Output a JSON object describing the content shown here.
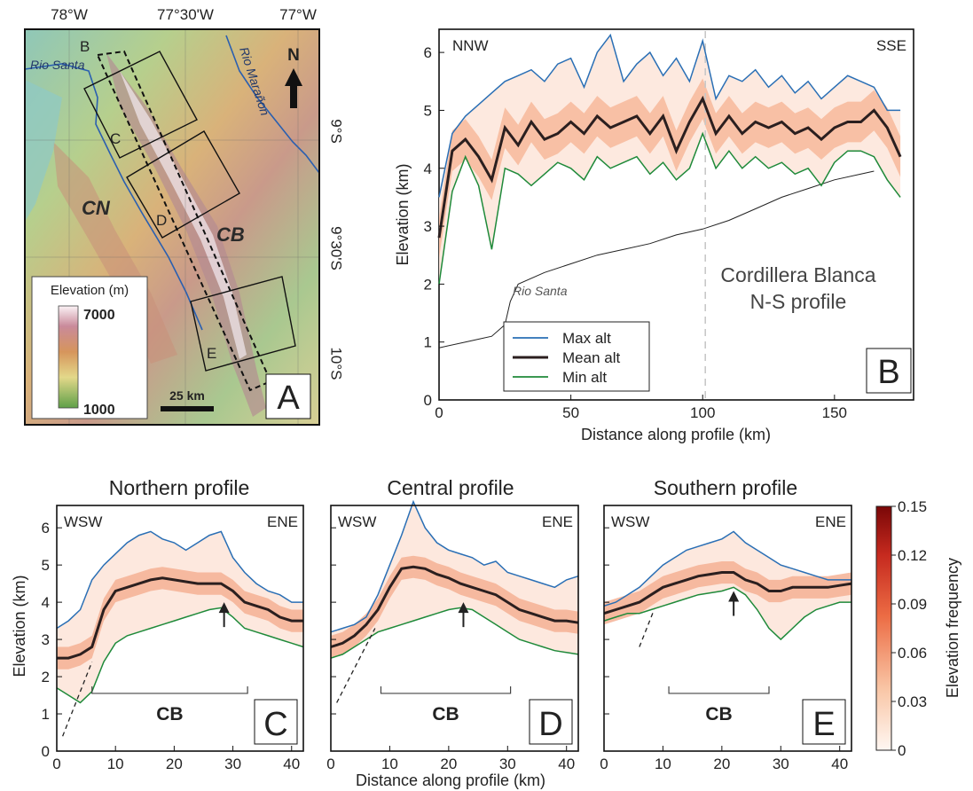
{
  "colors": {
    "max": "#2a6fb5",
    "mean": "#2b1f1f",
    "min": "#1f8a3a",
    "river": "#222222",
    "heat_low": "#fff4ee",
    "heat_high": "#8b0a0a"
  },
  "map": {
    "lon_ticks": [
      "78°W",
      "77°30'W",
      "77°W"
    ],
    "lat_ticks": [
      "9°S",
      "9°30'S",
      "10°S"
    ],
    "rivers": [
      "Rio Santa",
      "Rio Marañon"
    ],
    "region_labels": [
      "CN",
      "CB"
    ],
    "box_labels": [
      "B",
      "C",
      "D",
      "E"
    ],
    "north": "N",
    "legend_title": "Elevation (m)",
    "legend_max": "7000",
    "legend_min": "1000",
    "scale": "25 km",
    "panel": "A"
  },
  "panel_b": {
    "dir_left": "NNW",
    "dir_right": "SSE",
    "title_line1": "Cordillera Blanca",
    "title_line2": "N-S profile",
    "river_label": "Rio Santa",
    "legend": [
      "Max alt",
      "Mean alt",
      "Min alt"
    ],
    "panel": "B"
  },
  "bottom": {
    "titles": [
      "Northern profile",
      "Central profile",
      "Southern profile"
    ],
    "dir_left": "WSW",
    "dir_right": "ENE",
    "cb": "CB",
    "panels": [
      "C",
      "D",
      "E"
    ],
    "xlabel": "Distance along profile (km)",
    "ylabel": "Elevation (km)"
  },
  "colorbar": {
    "label": "Elevation frequency",
    "ticks": [
      "0.15",
      "0.12",
      "0.09",
      "0.06",
      "0.03",
      "0"
    ]
  },
  "chart_data": [
    {
      "type": "line",
      "title": "Cordillera Blanca N-S profile",
      "xlabel": "Distance along profile (km)",
      "ylabel": "Elevation (km)",
      "xlim": [
        0,
        180
      ],
      "ylim": [
        0,
        6.4
      ],
      "x_ticks": [
        0,
        50,
        100,
        150
      ],
      "y_ticks": [
        0,
        1,
        2,
        3,
        4,
        5,
        6
      ],
      "x": [
        0,
        5,
        10,
        15,
        20,
        25,
        30,
        35,
        40,
        45,
        50,
        55,
        60,
        65,
        70,
        75,
        80,
        85,
        90,
        95,
        100,
        105,
        110,
        115,
        120,
        125,
        130,
        135,
        140,
        145,
        150,
        155,
        160,
        165,
        170,
        175
      ],
      "series": [
        {
          "name": "Max alt",
          "values": [
            3.5,
            4.6,
            4.9,
            5.1,
            5.3,
            5.5,
            5.6,
            5.7,
            5.5,
            5.8,
            5.9,
            5.4,
            6.0,
            6.3,
            5.5,
            5.8,
            6.0,
            5.6,
            5.9,
            5.5,
            6.2,
            5.2,
            5.6,
            5.5,
            5.7,
            5.4,
            5.6,
            5.3,
            5.5,
            5.2,
            5.4,
            5.6,
            5.5,
            5.4,
            5.0,
            5.0
          ]
        },
        {
          "name": "Mean alt",
          "values": [
            2.8,
            4.3,
            4.5,
            4.2,
            3.8,
            4.7,
            4.4,
            4.8,
            4.5,
            4.6,
            4.8,
            4.6,
            4.9,
            4.7,
            4.8,
            4.9,
            4.6,
            4.9,
            4.3,
            4.8,
            5.2,
            4.6,
            4.9,
            4.6,
            4.8,
            4.7,
            4.8,
            4.6,
            4.7,
            4.5,
            4.7,
            4.8,
            4.8,
            5.0,
            4.7,
            4.2
          ]
        },
        {
          "name": "Min alt",
          "values": [
            2.0,
            3.6,
            4.2,
            3.7,
            2.6,
            4.0,
            3.9,
            3.7,
            3.9,
            4.1,
            4.0,
            3.8,
            4.2,
            4.0,
            4.1,
            4.2,
            3.9,
            4.1,
            3.8,
            4.0,
            4.6,
            4.0,
            4.3,
            4.0,
            4.2,
            4.0,
            4.1,
            3.9,
            4.0,
            3.7,
            4.1,
            4.3,
            4.3,
            4.2,
            3.8,
            3.5
          ]
        }
      ],
      "river": {
        "x": [
          0,
          10,
          20,
          25,
          27,
          30,
          40,
          50,
          60,
          70,
          80,
          90,
          100,
          110,
          120,
          130,
          140,
          150,
          160,
          165
        ],
        "y": [
          0.9,
          1.0,
          1.1,
          1.3,
          1.7,
          2.0,
          2.2,
          2.35,
          2.5,
          2.6,
          2.7,
          2.85,
          2.95,
          3.1,
          3.3,
          3.5,
          3.65,
          3.8,
          3.9,
          3.95
        ]
      },
      "marker_x": 101
    },
    {
      "type": "line",
      "title": "Northern profile",
      "xlim": [
        0,
        42
      ],
      "ylim": [
        0,
        6.6
      ],
      "x_ticks": [
        0,
        10,
        20,
        30,
        40
      ],
      "y_ticks": [
        0,
        1,
        2,
        3,
        4,
        5,
        6
      ],
      "x": [
        0,
        2,
        4,
        6,
        8,
        10,
        12,
        14,
        16,
        18,
        20,
        22,
        24,
        26,
        28,
        30,
        32,
        34,
        36,
        38,
        40,
        42
      ],
      "series": [
        {
          "name": "Max alt",
          "values": [
            3.3,
            3.5,
            3.8,
            4.6,
            5.0,
            5.3,
            5.6,
            5.8,
            5.9,
            5.7,
            5.6,
            5.4,
            5.6,
            5.8,
            5.9,
            5.2,
            4.8,
            4.5,
            4.3,
            4.2,
            4.0,
            4.0
          ]
        },
        {
          "name": "Mean alt",
          "values": [
            2.5,
            2.5,
            2.6,
            2.8,
            3.8,
            4.3,
            4.4,
            4.5,
            4.6,
            4.65,
            4.6,
            4.55,
            4.5,
            4.5,
            4.5,
            4.3,
            4.0,
            3.9,
            3.8,
            3.6,
            3.5,
            3.5
          ]
        },
        {
          "name": "Min alt",
          "values": [
            1.7,
            1.5,
            1.3,
            1.6,
            2.4,
            2.9,
            3.1,
            3.2,
            3.3,
            3.4,
            3.5,
            3.6,
            3.7,
            3.8,
            3.85,
            3.6,
            3.3,
            3.2,
            3.1,
            3.0,
            2.9,
            2.8
          ]
        }
      ],
      "arrow_x": 28.5,
      "cb_range": [
        6,
        32.5
      ],
      "dash": [
        [
          1,
          0.4
        ],
        [
          6,
          2.4
        ]
      ]
    },
    {
      "type": "line",
      "title": "Central profile",
      "xlim": [
        0,
        42
      ],
      "ylim": [
        0,
        6.6
      ],
      "x_ticks": [
        0,
        10,
        20,
        30,
        40
      ],
      "y_ticks": [
        0,
        1,
        2,
        3,
        4,
        5,
        6
      ],
      "x": [
        0,
        2,
        4,
        6,
        8,
        10,
        12,
        14,
        16,
        18,
        20,
        22,
        24,
        26,
        28,
        30,
        32,
        34,
        36,
        38,
        40,
        42
      ],
      "series": [
        {
          "name": "Max alt",
          "values": [
            3.2,
            3.3,
            3.4,
            3.6,
            4.2,
            5.0,
            5.8,
            6.7,
            6.0,
            5.6,
            5.4,
            5.3,
            5.2,
            5.0,
            5.1,
            4.8,
            4.7,
            4.6,
            4.5,
            4.4,
            4.6,
            4.7
          ]
        },
        {
          "name": "Mean alt",
          "values": [
            2.8,
            2.9,
            3.1,
            3.4,
            3.8,
            4.4,
            4.9,
            4.95,
            4.9,
            4.75,
            4.65,
            4.5,
            4.4,
            4.3,
            4.2,
            4.0,
            3.8,
            3.7,
            3.6,
            3.5,
            3.5,
            3.45
          ]
        },
        {
          "name": "Min alt",
          "values": [
            2.5,
            2.6,
            2.8,
            3.0,
            3.2,
            3.3,
            3.4,
            3.5,
            3.6,
            3.7,
            3.8,
            3.85,
            3.8,
            3.6,
            3.4,
            3.2,
            3.0,
            2.9,
            2.8,
            2.7,
            2.65,
            2.6
          ]
        }
      ],
      "arrow_x": 22.5,
      "cb_range": [
        8.5,
        30.5
      ],
      "dash": [
        [
          1,
          1.3
        ],
        [
          7.5,
          3.3
        ]
      ]
    },
    {
      "type": "line",
      "title": "Southern profile",
      "xlim": [
        0,
        42
      ],
      "ylim": [
        0,
        6.6
      ],
      "x_ticks": [
        0,
        10,
        20,
        30,
        40
      ],
      "y_ticks": [
        0,
        1,
        2,
        3,
        4,
        5,
        6
      ],
      "x": [
        0,
        2,
        4,
        6,
        8,
        10,
        12,
        14,
        16,
        18,
        20,
        22,
        24,
        26,
        28,
        30,
        32,
        34,
        36,
        38,
        40,
        42
      ],
      "series": [
        {
          "name": "Max alt",
          "values": [
            3.9,
            4.0,
            4.2,
            4.4,
            4.7,
            5.0,
            5.2,
            5.4,
            5.5,
            5.6,
            5.7,
            5.9,
            5.6,
            5.4,
            5.2,
            5.0,
            4.9,
            4.8,
            4.7,
            4.6,
            4.6,
            4.6
          ]
        },
        {
          "name": "Mean alt",
          "values": [
            3.7,
            3.8,
            3.9,
            4.0,
            4.2,
            4.4,
            4.5,
            4.6,
            4.7,
            4.75,
            4.8,
            4.8,
            4.6,
            4.5,
            4.3,
            4.3,
            4.4,
            4.4,
            4.4,
            4.4,
            4.45,
            4.5
          ]
        },
        {
          "name": "Min alt",
          "values": [
            3.5,
            3.6,
            3.7,
            3.7,
            3.8,
            3.9,
            4.0,
            4.1,
            4.2,
            4.25,
            4.3,
            4.4,
            4.2,
            3.8,
            3.3,
            3.0,
            3.3,
            3.6,
            3.8,
            3.9,
            4.0,
            4.0
          ]
        }
      ],
      "arrow_x": 22,
      "cb_range": [
        11,
        28
      ],
      "dash": [
        [
          6,
          2.8
        ],
        [
          8.5,
          3.8
        ]
      ]
    }
  ]
}
